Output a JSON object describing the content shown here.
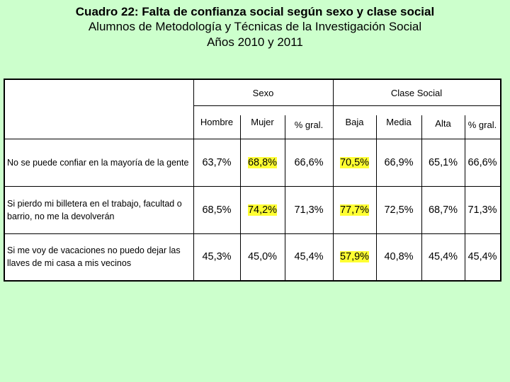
{
  "title": {
    "line1": "Cuadro 22: Falta de confianza social según sexo y clase social",
    "line2": "Alumnos de Metodología y Técnicas de la Investigación Social",
    "line3": "Años 2010 y 2011"
  },
  "table": {
    "group_headers": {
      "sexo": "Sexo",
      "clase": "Clase Social"
    },
    "columns": [
      "Hombre",
      "Mujer",
      "% gral.",
      "Baja",
      "Media",
      "Alta",
      "% gral."
    ],
    "rows": [
      {
        "label": "No se puede confiar en la mayoría de la gente",
        "values": [
          "63,7%",
          "68,8%",
          "66,6%",
          "70,5%",
          "66,9%",
          "65,1%",
          "66,6%"
        ]
      },
      {
        "label": "Si pierdo mi billetera en el trabajo, facultad o barrio, no me la devolverán",
        "values": [
          "68,5%",
          "74,2%",
          "71,3%",
          "77,7%",
          "72,5%",
          "68,7%",
          "71,3%"
        ]
      },
      {
        "label": "Si me voy de vacaciones no puedo dejar las llaves de mi casa a mis vecinos",
        "values": [
          "45,3%",
          "45,0%",
          "45,4%",
          "57,9%",
          "40,8%",
          "45,4%",
          "45,4%"
        ]
      }
    ],
    "highlight_color": "#ffff33"
  }
}
